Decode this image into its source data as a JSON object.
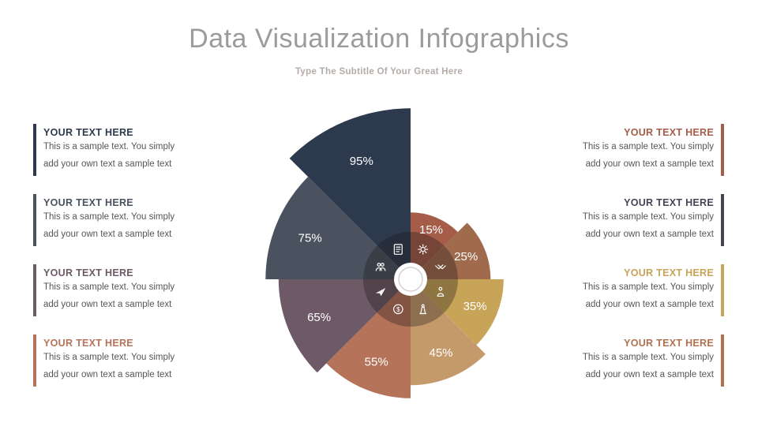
{
  "slide": {
    "title": "Data Visualization Infographics",
    "subtitle": "Type The Subtitle Of Your Great Here"
  },
  "chart_data": {
    "type": "polar-area",
    "subtype": "rose-chart",
    "unit": "%",
    "start_angle_deg": 0,
    "segment_angle_deg": 45,
    "clockwise": true,
    "note": "8 wedges of 45 degrees starting at 12 o'clock going clockwise; wedge radius scales with value; white percent label on each wedge; ring of white icons around a white center circle on a darkened hub",
    "segments": [
      {
        "label": "15%",
        "value": 15,
        "color": "#a55d4a",
        "icon": "gear-icon"
      },
      {
        "label": "25%",
        "value": 25,
        "color": "#a06b4d",
        "icon": "handshake-icon"
      },
      {
        "label": "35%",
        "value": 35,
        "color": "#c8a458",
        "icon": "person-icon"
      },
      {
        "label": "45%",
        "value": 45,
        "color": "#c59a6b",
        "icon": "chess-piece-icon"
      },
      {
        "label": "55%",
        "value": 55,
        "color": "#b5735a",
        "icon": "dollar-icon"
      },
      {
        "label": "65%",
        "value": 65,
        "color": "#6d5a66",
        "icon": "paper-plane-icon"
      },
      {
        "label": "75%",
        "value": 75,
        "color": "#4a5260",
        "icon": "people-icon"
      },
      {
        "label": "95%",
        "value": 95,
        "color": "#2d3a4d",
        "icon": "document-icon"
      }
    ]
  },
  "left_items": [
    {
      "heading": "YOUR TEXT HERE",
      "body_line1": "This is a sample text.  You simply",
      "body_line2": "add your own text a sample text",
      "color": "#2d3a4d"
    },
    {
      "heading": "YOUR TEXT HERE",
      "body_line1": "This is a sample text.  You simply",
      "body_line2": "add your own text a sample text",
      "color": "#4a5260"
    },
    {
      "heading": "YOUR TEXT HERE",
      "body_line1": "This is a sample text.  You simply",
      "body_line2": "add your own text a sample text",
      "color": "#6d5a66"
    },
    {
      "heading": "YOUR TEXT HERE",
      "body_line1": "This is a sample text.  You simply",
      "body_line2": "add your own text a sample text",
      "color": "#b5735a"
    }
  ],
  "right_items": [
    {
      "heading": "YOUR TEXT HERE",
      "body_line1": "This is a sample text.  You simply",
      "body_line2": "add your own text a sample text",
      "color": "#a55d4a"
    },
    {
      "heading": "YOUR TEXT HERE",
      "body_line1": "This is a sample text.  You simply",
      "body_line2": "add your own text a sample text",
      "color": "#4a4156"
    },
    {
      "heading": "YOUR TEXT HERE",
      "body_line1": "This is a sample text.  You simply",
      "body_line2": "add your own text a sample text",
      "color": "#c8a458"
    },
    {
      "heading": "YOUR TEXT HERE",
      "body_line1": "This is a sample text.  You simply",
      "body_line2": "add your own text a sample text",
      "color": "#b0714f"
    }
  ]
}
